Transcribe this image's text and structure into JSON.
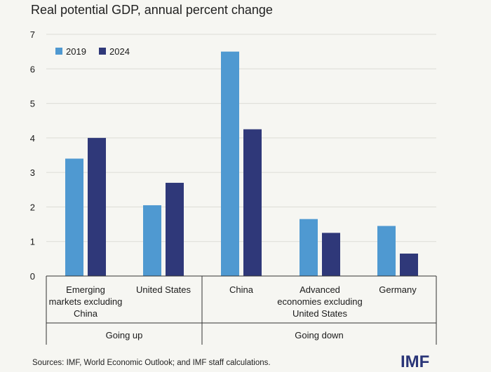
{
  "title": "Real potential GDP, annual percent change",
  "source": "Sources: IMF, World Economic Outlook; and IMF staff calculations.",
  "logo_text": "IMF",
  "colors": {
    "series_2019": "#4f99d1",
    "series_2024": "#2f3879",
    "grid": "#dcdcd6",
    "axis": "#333333",
    "logo": "#2a3578"
  },
  "chart_data": {
    "type": "bar",
    "ylim": [
      0,
      7
    ],
    "yticks": [
      "0",
      "1",
      "2",
      "3",
      "4",
      "5",
      "6",
      "7"
    ],
    "grid": true,
    "legend_position": "top-left",
    "categories": [
      [
        "Emerging",
        "markets excluding",
        "China"
      ],
      [
        "United States"
      ],
      [
        "China"
      ],
      [
        "Advanced",
        "economies excluding",
        "United States"
      ],
      [
        "Germany"
      ]
    ],
    "series": [
      {
        "name": "2019",
        "values": [
          3.4,
          2.05,
          6.5,
          1.65,
          1.45
        ]
      },
      {
        "name": "2024",
        "values": [
          4.0,
          2.7,
          4.25,
          1.25,
          0.65
        ]
      }
    ],
    "groups": [
      {
        "label": "Going up",
        "categories": [
          0,
          1
        ]
      },
      {
        "label": "Going down",
        "categories": [
          2,
          3,
          4
        ]
      }
    ]
  }
}
